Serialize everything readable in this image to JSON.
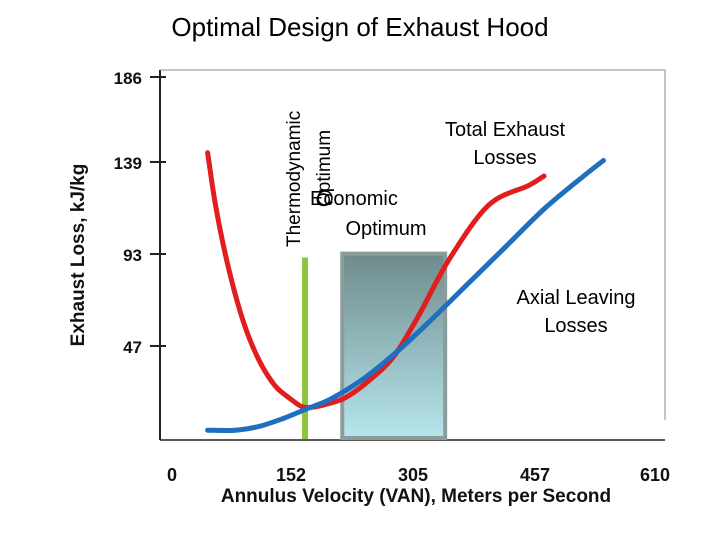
{
  "title": "Optimal Design of Exhaust Hood",
  "colors": {
    "total_losses": "#e11d1d",
    "axial_losses": "#1e6fc0",
    "thermo_marker": "#8cc63f",
    "econ_box_top": "#6f8b8c",
    "econ_box_bottom": "#b6e6ec"
  },
  "chart_data": {
    "type": "line",
    "xlabel": "Annulus Velocity (VAN), Meters per Second",
    "ylabel": "Exhaust Loss, kJ/kg",
    "x_ticks": [
      "0",
      "152",
      "305",
      "457",
      "610"
    ],
    "y_ticks": [
      "186",
      "139",
      "93",
      "47"
    ],
    "xlim": [
      0,
      610
    ],
    "ylim": [
      0,
      186
    ],
    "series": [
      {
        "name": "Total Exhaust Losses",
        "x": [
          45,
          55,
          70,
          90,
          110,
          130,
          150,
          165,
          180,
          200,
          220,
          250,
          280,
          310,
          350,
          400,
          450,
          470
        ],
        "y": [
          147,
          120,
          90,
          60,
          40,
          27,
          20,
          16,
          16,
          18,
          21,
          30,
          42,
          62,
          92,
          120,
          130,
          135
        ]
      },
      {
        "name": "Axial Leaving Losses",
        "x": [
          45,
          80,
          110,
          140,
          170,
          200,
          240,
          280,
          320,
          370,
          420,
          470,
          520,
          545
        ],
        "y": [
          4,
          4,
          6,
          10,
          15,
          20,
          30,
          43,
          58,
          78,
          98,
          118,
          135,
          143
        ]
      }
    ],
    "annotations": {
      "thermo_label_line1": "Thermodynamic",
      "thermo_label_line2": "Optimum",
      "econ_label_line1": "Economic",
      "econ_label_line2": "Optimum",
      "total_label_line1": "Total Exhaust",
      "total_label_line2": "Losses",
      "axial_label_line1": "Axial Leaving",
      "axial_label_line2": "Losses"
    },
    "thermodynamic_optimum_x": 168,
    "thermodynamic_optimum_y_top": 93,
    "economic_optimum_range": [
      215,
      345
    ],
    "economic_optimum_y_top": 95
  }
}
